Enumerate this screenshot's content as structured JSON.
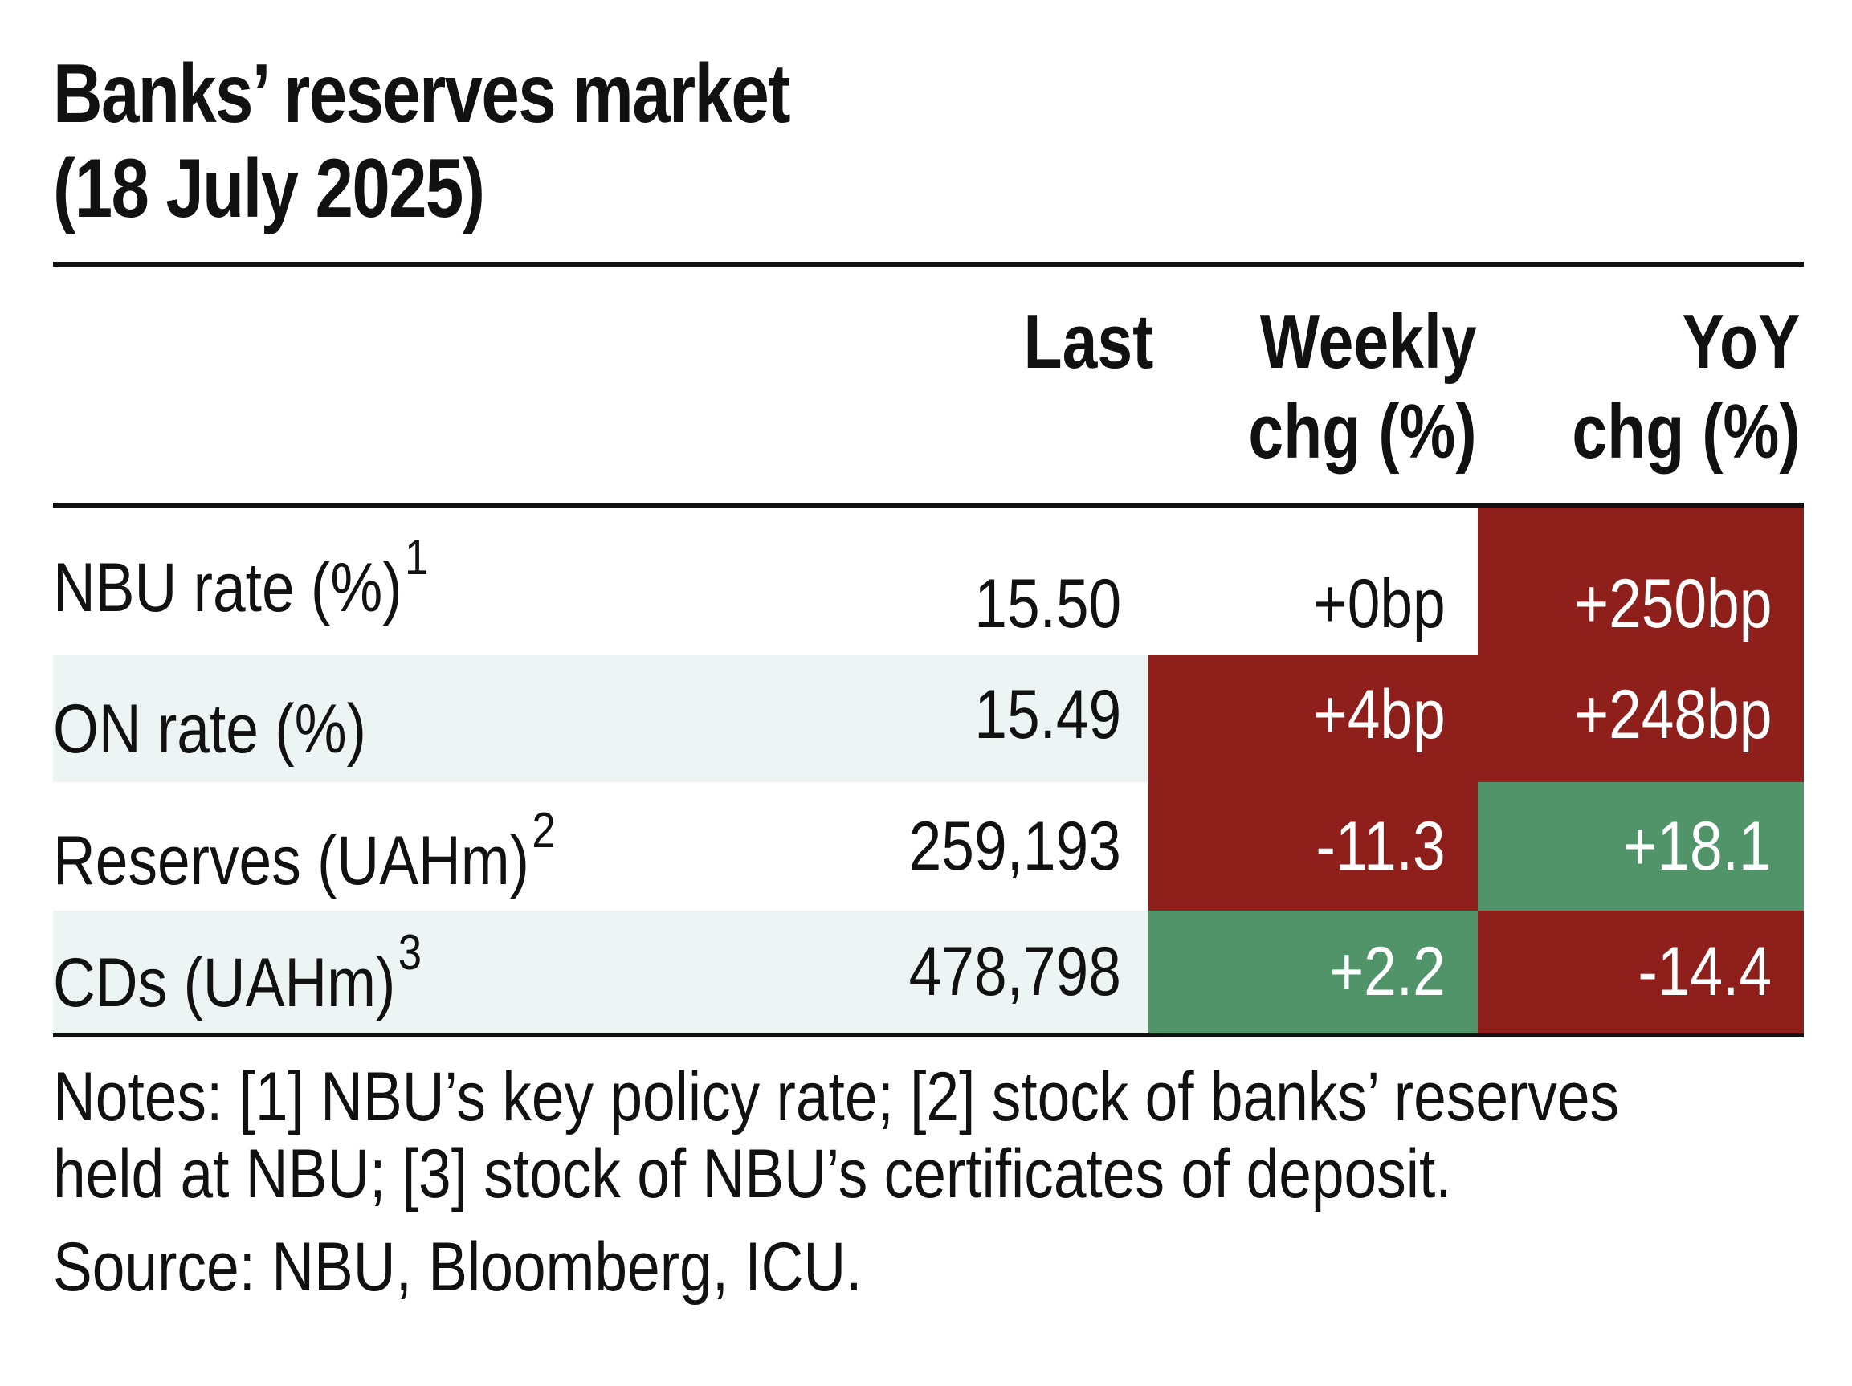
{
  "chart_data": {
    "type": "table",
    "title_line1": "Banks’ reserves market",
    "title_line2": "(18 July 2025)",
    "columns": [
      {
        "line1": "Last",
        "line2": ""
      },
      {
        "line1": "Weekly",
        "line2": "chg (%)"
      },
      {
        "line1": "YoY",
        "line2": "chg (%)"
      }
    ],
    "rows": [
      {
        "label": "NBU rate (%)",
        "footnote": "1",
        "last": "15.50",
        "weekly": "+0bp",
        "weekly_color": "",
        "yoy": "+250bp",
        "yoy_color": "#8e1f1a"
      },
      {
        "label": "ON rate (%)",
        "footnote": "",
        "last": "15.49",
        "weekly": "+4bp",
        "weekly_color": "#8e1f1a",
        "yoy": "+248bp",
        "yoy_color": "#8e1f1a"
      },
      {
        "label": "Reserves (UAHm)",
        "footnote": "2",
        "last": "259,193",
        "weekly": "-11.3",
        "weekly_color": "#8e1f1a",
        "yoy": "+18.1",
        "yoy_color": "#52946a"
      },
      {
        "label": "CDs (UAHm)",
        "footnote": "3",
        "last": "478,798",
        "weekly": "+2.2",
        "weekly_color": "#52946a",
        "yoy": "-14.4",
        "yoy_color": "#8e1f1a"
      }
    ],
    "notes_line1": "Notes: [1] NBU’s key policy rate; [2] stock of banks’ reserves",
    "notes_line2": "held at NBU; [3] stock of NBU’s certificates of deposit.",
    "source": "Source: NBU, Bloomberg, ICU."
  }
}
